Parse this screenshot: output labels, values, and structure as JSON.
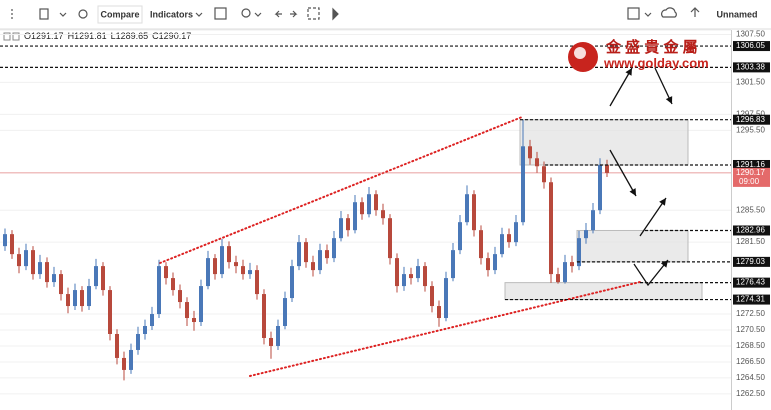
{
  "toolbar": {
    "compare": "Compare",
    "indicators": "Indicators",
    "layout_name": "Unnamed"
  },
  "logo": {
    "name": "金 盛 貴 金 屬",
    "url": "www.golday.com"
  },
  "chart_data": {
    "type": "candlestick",
    "ohlc_keys": [
      "O",
      "H",
      "L",
      "C"
    ],
    "up_color": "#4a78b8",
    "down_color": "#b8493c",
    "ylim": [
      1261.11,
      1308.06
    ],
    "yticks": [
      {
        "value": 1262.5,
        "label": "1262.50"
      },
      {
        "value": 1264.5,
        "label": "1264.50"
      },
      {
        "value": 1266.5,
        "label": "1266.50"
      },
      {
        "value": 1268.5,
        "label": "1268.50"
      },
      {
        "value": 1270.5,
        "label": "1270.50"
      },
      {
        "value": 1272.5,
        "label": "1272.50"
      },
      {
        "value": 1281.5,
        "label": "1281.50"
      },
      {
        "value": 1285.5,
        "label": "1285.50"
      },
      {
        "value": 1295.5,
        "label": "1295.50"
      },
      {
        "value": 1297.5,
        "label": "1297.50"
      },
      {
        "value": 1301.5,
        "label": "1301.50"
      },
      {
        "value": 1307.5,
        "label": "1307.50"
      }
    ],
    "grid": true,
    "levels": [
      1306.05,
      1303.38,
      1296.83,
      1291.16,
      1282.96,
      1279.03,
      1276.43,
      1274.31
    ],
    "countdown": "09:00",
    "open": [
      1281.0,
      1282.5,
      1280.0,
      1278.5,
      1280.5,
      1277.5,
      1279.0,
      1276.5,
      1277.5,
      1275.0,
      1273.5,
      1275.5,
      1273.5,
      1276.0,
      1278.5,
      1275.5,
      1270.0,
      1267.0,
      1265.5,
      1268.0,
      1270.0,
      1271.0,
      1272.5,
      1278.5,
      1277.0,
      1275.5,
      1274.0,
      1272.0,
      1271.5,
      1276.0,
      1279.5,
      1277.5,
      1281.0,
      1279.0,
      1278.5,
      1277.5,
      1278.0,
      1275.0,
      1269.5,
      1268.5,
      1271.0,
      1274.5,
      1278.5,
      1281.5,
      1279.0,
      1278.0,
      1280.5,
      1279.5,
      1282.0,
      1284.5,
      1283.0,
      1286.5,
      1285.0,
      1287.5,
      1285.5,
      1284.5,
      1279.5,
      1276.0,
      1277.5,
      1277.0,
      1278.5,
      1276.0,
      1273.5,
      1272.0,
      1277.0,
      1280.5,
      1284.0,
      1287.5,
      1283.0,
      1279.5,
      1278.0,
      1280.0,
      1282.5,
      1281.5,
      1284.0,
      1293.5,
      1292.0,
      1291.0,
      1289.0,
      1277.5,
      1276.5,
      1279.0,
      1278.5,
      1282.0,
      1283.0,
      1285.5,
      1291.17
    ],
    "high": [
      1283.2,
      1283.0,
      1280.8,
      1281.3,
      1281.0,
      1279.9,
      1279.6,
      1278.4,
      1278.0,
      1275.8,
      1276.3,
      1276.0,
      1276.9,
      1279.4,
      1279.0,
      1276.0,
      1270.6,
      1267.8,
      1268.8,
      1270.9,
      1271.8,
      1273.4,
      1279.3,
      1279.0,
      1277.7,
      1276.2,
      1274.6,
      1272.9,
      1276.8,
      1280.4,
      1280.0,
      1281.9,
      1281.6,
      1279.8,
      1279.3,
      1278.9,
      1278.6,
      1275.6,
      1270.3,
      1271.8,
      1275.3,
      1279.3,
      1282.4,
      1282.0,
      1279.8,
      1281.3,
      1281.2,
      1282.9,
      1285.4,
      1285.0,
      1287.4,
      1287.1,
      1288.4,
      1288.0,
      1286.3,
      1285.0,
      1280.1,
      1278.4,
      1278.3,
      1279.4,
      1279.0,
      1276.6,
      1274.2,
      1277.8,
      1281.4,
      1284.9,
      1288.6,
      1288.0,
      1283.6,
      1280.2,
      1280.9,
      1283.3,
      1283.2,
      1284.9,
      1296.8,
      1294.3,
      1292.8,
      1291.6,
      1289.6,
      1278.3,
      1279.9,
      1279.8,
      1282.9,
      1283.9,
      1286.4,
      1292.0,
      1291.81
    ],
    "low": [
      1280.4,
      1279.4,
      1277.6,
      1278.0,
      1276.8,
      1276.9,
      1275.8,
      1275.9,
      1274.2,
      1272.6,
      1273.0,
      1272.8,
      1273.0,
      1275.6,
      1274.8,
      1269.2,
      1266.2,
      1264.2,
      1265.0,
      1267.4,
      1269.3,
      1270.5,
      1272.0,
      1276.2,
      1274.8,
      1273.2,
      1271.0,
      1270.4,
      1271.0,
      1275.6,
      1276.8,
      1277.0,
      1278.2,
      1277.6,
      1276.8,
      1276.9,
      1274.3,
      1268.7,
      1266.9,
      1268.0,
      1270.6,
      1274.0,
      1278.0,
      1278.3,
      1277.2,
      1277.5,
      1278.8,
      1279.0,
      1281.6,
      1282.2,
      1282.6,
      1284.3,
      1284.6,
      1284.8,
      1283.7,
      1278.7,
      1275.2,
      1275.4,
      1276.2,
      1276.5,
      1275.3,
      1272.7,
      1270.9,
      1271.6,
      1276.6,
      1280.0,
      1283.6,
      1282.2,
      1278.7,
      1277.2,
      1277.5,
      1279.6,
      1280.8,
      1281.0,
      1283.6,
      1291.2,
      1290.2,
      1288.2,
      1276.4,
      1276.3,
      1276.3,
      1277.7,
      1278.0,
      1281.3,
      1282.6,
      1285.0,
      1289.65
    ],
    "close": [
      1282.5,
      1280.0,
      1278.5,
      1280.5,
      1277.5,
      1279.0,
      1276.5,
      1277.5,
      1275.0,
      1273.5,
      1275.5,
      1273.5,
      1276.0,
      1278.5,
      1275.5,
      1270.0,
      1267.0,
      1265.5,
      1268.0,
      1270.0,
      1271.0,
      1272.5,
      1278.5,
      1277.0,
      1275.5,
      1274.0,
      1272.0,
      1271.5,
      1276.0,
      1279.5,
      1277.5,
      1281.0,
      1279.0,
      1278.5,
      1277.5,
      1278.0,
      1275.0,
      1269.5,
      1268.5,
      1271.0,
      1274.5,
      1278.5,
      1281.5,
      1279.0,
      1278.0,
      1280.5,
      1279.5,
      1282.0,
      1284.5,
      1283.0,
      1286.5,
      1285.0,
      1287.5,
      1285.5,
      1284.5,
      1279.5,
      1276.0,
      1277.5,
      1277.0,
      1278.5,
      1276.0,
      1273.5,
      1272.0,
      1277.0,
      1280.5,
      1284.0,
      1287.5,
      1283.0,
      1279.5,
      1278.0,
      1280.0,
      1282.5,
      1281.5,
      1284.0,
      1293.5,
      1292.0,
      1291.0,
      1289.0,
      1277.5,
      1276.5,
      1279.0,
      1278.5,
      1282.0,
      1283.0,
      1285.5,
      1291.17,
      1290.17
    ]
  }
}
